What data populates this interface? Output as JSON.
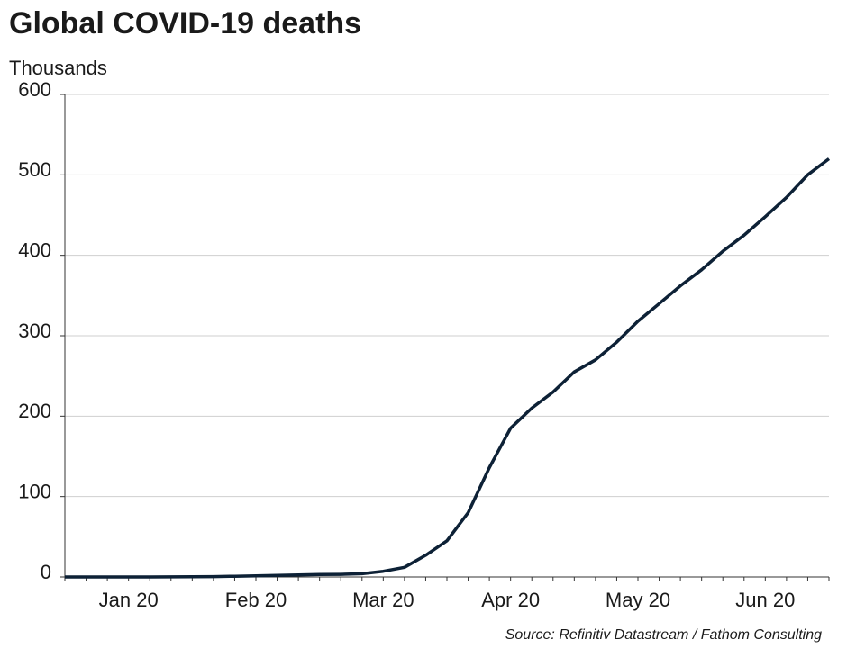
{
  "chart_data": {
    "type": "line",
    "title": "Global COVID-19 deaths",
    "y_label": "Thousands",
    "source": "Source: Refinitiv Datastream / Fathom Consulting",
    "categories": [
      null,
      null,
      null,
      "Jan 20",
      null,
      null,
      null,
      null,
      null,
      "Feb 20",
      null,
      null,
      null,
      null,
      null,
      "Mar 20",
      null,
      null,
      null,
      null,
      null,
      "Apr 20",
      null,
      null,
      null,
      null,
      null,
      "May 20",
      null,
      null,
      null,
      null,
      null,
      "Jun 20",
      null,
      null,
      null
    ],
    "series": [
      {
        "name": "Global COVID-19 deaths",
        "color": "#0d2136",
        "values": [
          0,
          0,
          0,
          0,
          0,
          0.1,
          0.3,
          0.5,
          0.9,
          1.4,
          2,
          2.6,
          3,
          3.2,
          4,
          7,
          12,
          27,
          45,
          80,
          136,
          185,
          210,
          230,
          255,
          270,
          292,
          318,
          340,
          362,
          382,
          405,
          425,
          448,
          472,
          500,
          520
        ]
      }
    ],
    "ylim": [
      0,
      600
    ],
    "yticks": [
      0,
      100,
      200,
      300,
      400,
      500,
      600
    ],
    "grid": true
  }
}
